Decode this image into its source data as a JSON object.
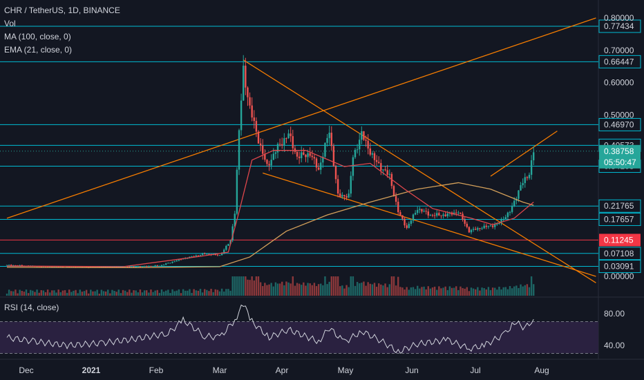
{
  "header": {
    "symbol_line": "CHR / TetherUS, 1D, BINANCE",
    "vol_label": "Vol",
    "ma_label": "MA (100, close, 0)",
    "ema_label": "EMA (21, close, 0)",
    "rsi_label": "RSI (14, close)"
  },
  "colors": {
    "background": "#131722",
    "up_candle": "#26a69a",
    "down_candle": "#ef5350",
    "horizontal_line": "#00bcd4",
    "trend_line": "#f57c00",
    "ma_line": "#d4a05a",
    "ema_line": "#e0474c",
    "rsi_fill": "#2a2140",
    "rsi_line": "#d1d4dc",
    "price_tag": "#26a69a",
    "red_tag": "#f23645"
  },
  "chart_data": {
    "type": "candlestick",
    "title": "CHR / TetherUS, 1D, BINANCE",
    "y_axis_ticks": [
      "0.80000",
      "0.70000",
      "0.60000",
      "0.50000",
      "0.00000"
    ],
    "x_axis_ticks": [
      "Dec",
      "2021",
      "Feb",
      "Mar",
      "Apr",
      "May",
      "Jun",
      "Jul",
      "Aug"
    ],
    "horizontal_levels": [
      {
        "label": "0.77434",
        "value": 0.77434
      },
      {
        "label": "0.66447",
        "value": 0.66447
      },
      {
        "label": "0.46970",
        "value": 0.4697
      },
      {
        "label": "0.40573",
        "value": 0.40573
      },
      {
        "label": "0.34108",
        "value": 0.34108
      },
      {
        "label": "0.21765",
        "value": 0.21765
      },
      {
        "label": "0.17657",
        "value": 0.17657
      },
      {
        "label": "0.07108",
        "value": 0.07108
      },
      {
        "label": "0.03091",
        "value": 0.03091
      }
    ],
    "red_level": {
      "label": "0.11245",
      "value": 0.11245
    },
    "current_price": {
      "label": "0.38758",
      "value": 0.38758,
      "countdown": "05:50:47"
    },
    "price_path": [
      [
        "2020-11-22",
        0.035
      ],
      [
        "2020-12-10",
        0.03
      ],
      [
        "2021-01-01",
        0.028
      ],
      [
        "2021-01-20",
        0.03
      ],
      [
        "2021-02-01",
        0.033
      ],
      [
        "2021-02-12",
        0.055
      ],
      [
        "2021-02-22",
        0.07
      ],
      [
        "2021-03-01",
        0.065
      ],
      [
        "2021-03-06",
        0.11
      ],
      [
        "2021-03-08",
        0.2
      ],
      [
        "2021-03-10",
        0.45
      ],
      [
        "2021-03-12",
        0.64
      ],
      [
        "2021-03-15",
        0.52
      ],
      [
        "2021-03-20",
        0.4
      ],
      [
        "2021-03-23",
        0.34
      ],
      [
        "2021-03-28",
        0.4
      ],
      [
        "2021-04-02",
        0.44
      ],
      [
        "2021-04-06",
        0.37
      ],
      [
        "2021-04-12",
        0.38
      ],
      [
        "2021-04-16",
        0.33
      ],
      [
        "2021-04-21",
        0.45
      ],
      [
        "2021-04-25",
        0.25
      ],
      [
        "2021-04-30",
        0.25
      ],
      [
        "2021-05-02",
        0.37
      ],
      [
        "2021-05-06",
        0.44
      ],
      [
        "2021-05-12",
        0.36
      ],
      [
        "2021-05-19",
        0.31
      ],
      [
        "2021-05-23",
        0.2
      ],
      [
        "2021-05-27",
        0.15
      ],
      [
        "2021-06-01",
        0.21
      ],
      [
        "2021-06-07",
        0.19
      ],
      [
        "2021-06-14",
        0.19
      ],
      [
        "2021-06-20",
        0.2
      ],
      [
        "2021-06-25",
        0.14
      ],
      [
        "2021-06-30",
        0.15
      ],
      [
        "2021-07-08",
        0.16
      ],
      [
        "2021-07-14",
        0.2
      ],
      [
        "2021-07-19",
        0.28
      ],
      [
        "2021-07-23",
        0.32
      ],
      [
        "2021-07-25",
        0.38758
      ]
    ],
    "ema_21": [
      [
        "2020-11-22",
        0.032
      ],
      [
        "2021-01-15",
        0.03
      ],
      [
        "2021-02-20",
        0.062
      ],
      [
        "2021-03-05",
        0.075
      ],
      [
        "2021-03-10",
        0.2
      ],
      [
        "2021-03-16",
        0.36
      ],
      [
        "2021-03-26",
        0.39
      ],
      [
        "2021-04-10",
        0.39
      ],
      [
        "2021-04-28",
        0.34
      ],
      [
        "2021-05-10",
        0.35
      ],
      [
        "2021-05-26",
        0.27
      ],
      [
        "2021-06-08",
        0.21
      ],
      [
        "2021-06-26",
        0.18
      ],
      [
        "2021-07-06",
        0.16
      ],
      [
        "2021-07-16",
        0.18
      ],
      [
        "2021-07-25",
        0.23
      ]
    ],
    "ma_100": [
      [
        "2020-11-22",
        0.028
      ],
      [
        "2021-01-20",
        0.027
      ],
      [
        "2021-03-01",
        0.03
      ],
      [
        "2021-03-15",
        0.06
      ],
      [
        "2021-04-01",
        0.14
      ],
      [
        "2021-04-20",
        0.19
      ],
      [
        "2021-05-10",
        0.23
      ],
      [
        "2021-06-01",
        0.27
      ],
      [
        "2021-06-20",
        0.29
      ],
      [
        "2021-07-05",
        0.27
      ],
      [
        "2021-07-20",
        0.23
      ],
      [
        "2021-07-25",
        0.22
      ]
    ],
    "trend_lines": [
      {
        "from": [
          "2020-11-22",
          0.18
        ],
        "to": [
          "2021-08-23",
          0.8
        ]
      },
      {
        "from": [
          "2021-03-12",
          0.67
        ],
        "to": [
          "2021-08-23",
          -0.02
        ]
      },
      {
        "from": [
          "2021-03-21",
          0.32
        ],
        "to": [
          "2021-08-23",
          -0.0
        ]
      },
      {
        "from": [
          "2021-07-05",
          0.31
        ],
        "to": [
          "2021-08-05",
          0.45
        ]
      }
    ],
    "rsi": {
      "ticks": [
        "80.00",
        "40.00"
      ],
      "band_upper": 70,
      "band_lower": 30,
      "values": [
        [
          "2020-11-22",
          50
        ],
        [
          "2020-12-05",
          45
        ],
        [
          "2020-12-20",
          40
        ],
        [
          "2021-01-05",
          43
        ],
        [
          "2021-01-20",
          48
        ],
        [
          "2021-02-05",
          55
        ],
        [
          "2021-02-12",
          72
        ],
        [
          "2021-02-22",
          52
        ],
        [
          "2021-03-01",
          50
        ],
        [
          "2021-03-08",
          72
        ],
        [
          "2021-03-12",
          92
        ],
        [
          "2021-03-16",
          70
        ],
        [
          "2021-03-24",
          50
        ],
        [
          "2021-04-02",
          60
        ],
        [
          "2021-04-16",
          45
        ],
        [
          "2021-04-21",
          62
        ],
        [
          "2021-04-28",
          44
        ],
        [
          "2021-05-06",
          58
        ],
        [
          "2021-05-15",
          46
        ],
        [
          "2021-05-23",
          32
        ],
        [
          "2021-06-01",
          42
        ],
        [
          "2021-06-15",
          47
        ],
        [
          "2021-06-25",
          36
        ],
        [
          "2021-07-02",
          40
        ],
        [
          "2021-07-12",
          55
        ],
        [
          "2021-07-16",
          70
        ],
        [
          "2021-07-21",
          62
        ],
        [
          "2021-07-25",
          73
        ]
      ]
    }
  }
}
